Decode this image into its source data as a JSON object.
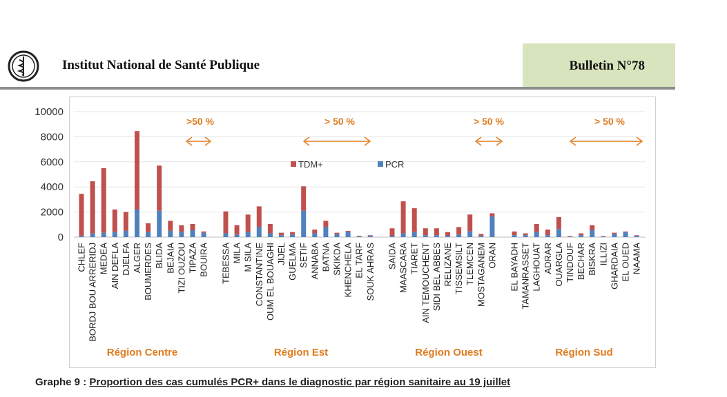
{
  "header": {
    "institute": "Institut National de Santé Publique",
    "bulletin": "Bulletin N°78",
    "logo_icon": "institute-logo-icon"
  },
  "caption": {
    "prefix": "Graphe 9 : ",
    "text": "Proportion des cas cumulés PCR+ dans le diagnostic par région sanitaire au 19 juillet"
  },
  "colors": {
    "tdm": "#c0504d",
    "pcr": "#4f81bd",
    "annotation": "#e07b1f"
  },
  "chart_data": {
    "type": "bar",
    "stacked": true,
    "ylim": [
      0,
      10000
    ],
    "yticks": [
      0,
      2000,
      4000,
      6000,
      8000,
      10000
    ],
    "grid": true,
    "legend": {
      "position": "top-center",
      "entries": [
        "TDM+",
        "PCR"
      ]
    },
    "series": [
      {
        "name": "PCR",
        "color": "#4f81bd"
      },
      {
        "name": "TDM+",
        "color": "#c0504d"
      }
    ],
    "groups": [
      {
        "region": "Région Centre",
        "annotation": ">50 %",
        "categories": [
          "CHLEF",
          "BORDJ BOU ARRERIDJ",
          "MEDEA",
          "AIN DEFLA",
          "DJELFA",
          "ALGER",
          "BOUMERDES",
          "BLIDA",
          "BEJAIA",
          "TIZI OUZOU",
          "TIPAZA",
          "BOUIRA"
        ],
        "pcr": [
          100,
          300,
          350,
          400,
          500,
          2200,
          400,
          2100,
          500,
          400,
          550,
          350
        ],
        "tdm": [
          3350,
          4150,
          5150,
          1800,
          1500,
          6250,
          700,
          3600,
          800,
          550,
          500,
          100
        ]
      },
      {
        "region": "Région Est",
        "annotation": "> 50 %",
        "categories": [
          "TEBESSA",
          "MILA",
          "M SILA",
          "CONSTANTINE",
          "OUM EL BOUAGHI",
          "JIJEL",
          "GUELMA",
          "SETIF",
          "ANNABA",
          "BATNA",
          "SKIKDA",
          "KHENCHELA",
          "EL TARF",
          "SOUK AHRAS"
        ],
        "pcr": [
          300,
          200,
          400,
          800,
          300,
          150,
          200,
          2100,
          300,
          800,
          250,
          400,
          50,
          100
        ],
        "tdm": [
          1750,
          750,
          1400,
          1650,
          750,
          200,
          200,
          1950,
          300,
          500,
          100,
          100,
          50,
          50
        ]
      },
      {
        "region": "Région Ouest",
        "annotation": "> 50 %",
        "categories": [
          "SAIDA",
          "MAASCARA",
          "TIARET",
          "AIN TEMOUCHENT",
          "SIDI BEL ABBES",
          "RELIZANE",
          "TISSEMSILT",
          "TLEMCEN",
          "MOSTAGANEM",
          "ORAN"
        ],
        "pcr": [
          100,
          300,
          400,
          150,
          150,
          100,
          200,
          450,
          100,
          1650
        ],
        "tdm": [
          600,
          2550,
          1900,
          550,
          550,
          300,
          600,
          1350,
          150,
          250
        ]
      },
      {
        "region": "Région Sud",
        "annotation": "> 50 %",
        "categories": [
          "EL BAYADH",
          "TAMANRASSET",
          "LAGHOUAT",
          "ADRAR",
          "OUARGLA",
          "TINDOUF",
          "BECHAR",
          "BISKRA",
          "ILLIZI",
          "GHARDAIA",
          "EL OUED",
          "NAAMA"
        ],
        "pcr": [
          150,
          150,
          400,
          150,
          650,
          30,
          150,
          550,
          30,
          250,
          400,
          100
        ],
        "tdm": [
          300,
          150,
          650,
          450,
          950,
          50,
          150,
          400,
          50,
          100,
          50,
          50
        ]
      }
    ]
  }
}
